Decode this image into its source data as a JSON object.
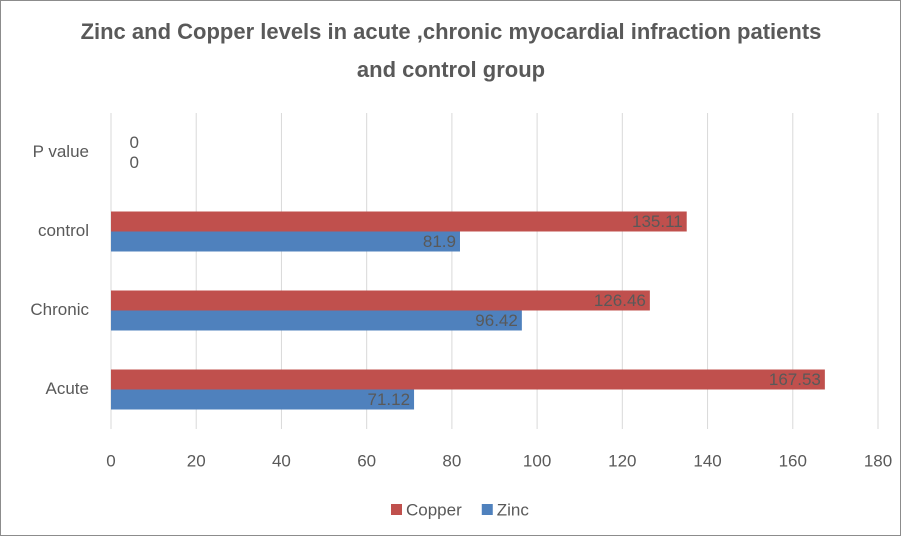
{
  "chart_data": {
    "type": "bar",
    "orientation": "horizontal",
    "title": "Zinc and Copper levels in acute ,chronic myocardial infraction patients and control group",
    "categories": [
      "Acute",
      "Chronic",
      "control",
      "P value"
    ],
    "series": [
      {
        "name": "Copper",
        "color": "#c0504d",
        "values": [
          167.53,
          126.46,
          135.11,
          0
        ]
      },
      {
        "name": "Zinc",
        "color": "#4f81bd",
        "values": [
          71.12,
          96.42,
          81.9,
          0
        ]
      }
    ],
    "xlim": [
      0,
      180
    ],
    "xticks": [
      0,
      20,
      40,
      60,
      80,
      100,
      120,
      140,
      160,
      180
    ],
    "grid": true,
    "legend": "bottom"
  }
}
